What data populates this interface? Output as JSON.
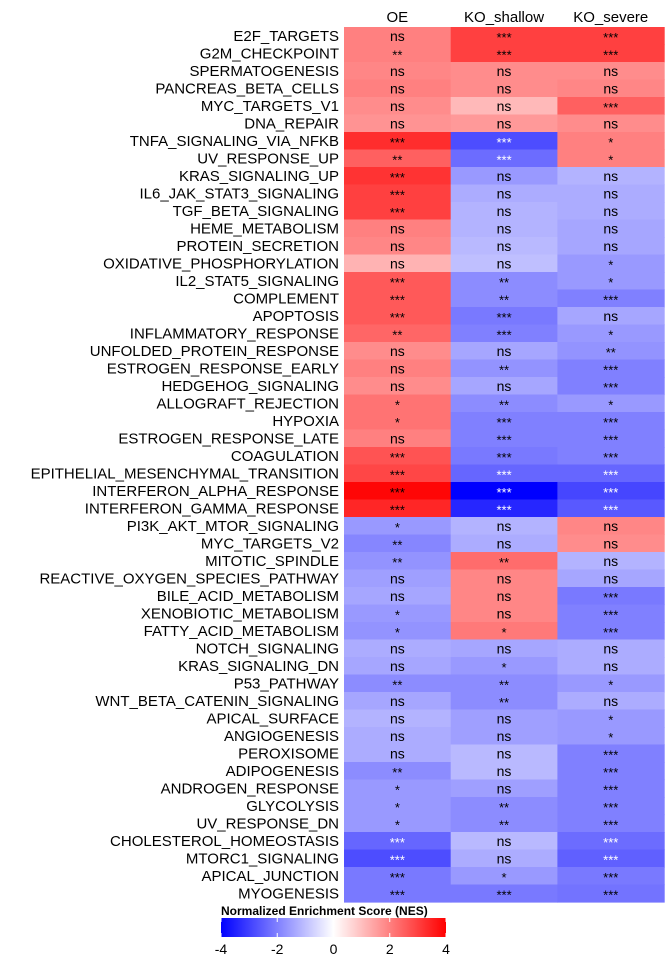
{
  "chart_data": {
    "type": "heatmap",
    "columns": [
      "OE",
      "KO_shallow",
      "KO_severe"
    ],
    "rows": [
      {
        "label": "E2F_TARGETS",
        "nes": [
          2.0,
          3.0,
          3.0
        ],
        "sig": [
          "ns",
          "***",
          "***"
        ]
      },
      {
        "label": "G2M_CHECKPOINT",
        "nes": [
          2.0,
          3.0,
          3.0
        ],
        "sig": [
          "**",
          "***",
          "***"
        ]
      },
      {
        "label": "SPERMATOGENESIS",
        "nes": [
          1.9,
          1.8,
          1.8
        ],
        "sig": [
          "ns",
          "ns",
          "ns"
        ]
      },
      {
        "label": "PANCREAS_BETA_CELLS",
        "nes": [
          2.0,
          1.8,
          1.9
        ],
        "sig": [
          "ns",
          "ns",
          "ns"
        ]
      },
      {
        "label": "MYC_TARGETS_V1",
        "nes": [
          1.8,
          1.1,
          2.5
        ],
        "sig": [
          "ns",
          "ns",
          "***"
        ]
      },
      {
        "label": "DNA_REPAIR",
        "nes": [
          1.7,
          1.6,
          1.8
        ],
        "sig": [
          "ns",
          "ns",
          "ns"
        ]
      },
      {
        "label": "TNFA_SIGNALING_VIA_NFKB",
        "nes": [
          3.3,
          -2.8,
          2.0
        ],
        "sig": [
          "***",
          "***",
          "*"
        ]
      },
      {
        "label": "UV_RESPONSE_UP",
        "nes": [
          2.5,
          -2.3,
          2.0
        ],
        "sig": [
          "**",
          "***",
          "*"
        ]
      },
      {
        "label": "KRAS_SIGNALING_UP",
        "nes": [
          3.2,
          -1.6,
          -1.2
        ],
        "sig": [
          "***",
          "ns",
          "ns"
        ]
      },
      {
        "label": "IL6_JAK_STAT3_SIGNALING",
        "nes": [
          3.0,
          -1.3,
          -1.3
        ],
        "sig": [
          "***",
          "ns",
          "ns"
        ]
      },
      {
        "label": "TGF_BETA_SIGNALING",
        "nes": [
          3.0,
          -1.2,
          -1.3
        ],
        "sig": [
          "***",
          "ns",
          "ns"
        ]
      },
      {
        "label": "HEME_METABOLISM",
        "nes": [
          2.0,
          -1.2,
          -1.4
        ],
        "sig": [
          "ns",
          "ns",
          "ns"
        ]
      },
      {
        "label": "PROTEIN_SECRETION",
        "nes": [
          1.9,
          -1.1,
          -1.4
        ],
        "sig": [
          "ns",
          "ns",
          "ns"
        ]
      },
      {
        "label": "OXIDATIVE_PHOSPHORYLATION",
        "nes": [
          1.2,
          -1.0,
          -1.6
        ],
        "sig": [
          "ns",
          "ns",
          "*"
        ]
      },
      {
        "label": "IL2_STAT5_SIGNALING",
        "nes": [
          2.6,
          -1.8,
          -1.6
        ],
        "sig": [
          "***",
          "**",
          "*"
        ]
      },
      {
        "label": "COMPLEMENT",
        "nes": [
          2.6,
          -1.8,
          -2.0
        ],
        "sig": [
          "***",
          "**",
          "***"
        ]
      },
      {
        "label": "APOPTOSIS",
        "nes": [
          2.6,
          -2.1,
          -1.4
        ],
        "sig": [
          "***",
          "***",
          "ns"
        ]
      },
      {
        "label": "INFLAMMATORY_RESPONSE",
        "nes": [
          2.4,
          -2.0,
          -1.6
        ],
        "sig": [
          "**",
          "***",
          "*"
        ]
      },
      {
        "label": "UNFOLDED_PROTEIN_RESPONSE",
        "nes": [
          1.8,
          -1.4,
          -1.7
        ],
        "sig": [
          "ns",
          "ns",
          "**"
        ]
      },
      {
        "label": "ESTROGEN_RESPONSE_EARLY",
        "nes": [
          2.0,
          -1.7,
          -2.0
        ],
        "sig": [
          "ns",
          "**",
          "***"
        ]
      },
      {
        "label": "HEDGEHOG_SIGNALING",
        "nes": [
          1.8,
          -1.4,
          -2.0
        ],
        "sig": [
          "ns",
          "ns",
          "***"
        ]
      },
      {
        "label": "ALLOGRAFT_REJECTION",
        "nes": [
          2.2,
          -1.8,
          -1.6
        ],
        "sig": [
          "*",
          "**",
          "*"
        ]
      },
      {
        "label": "HYPOXIA",
        "nes": [
          2.2,
          -2.0,
          -2.0
        ],
        "sig": [
          "*",
          "***",
          "***"
        ]
      },
      {
        "label": "ESTROGEN_RESPONSE_LATE",
        "nes": [
          2.0,
          -2.0,
          -2.0
        ],
        "sig": [
          "ns",
          "***",
          "***"
        ]
      },
      {
        "label": "COAGULATION",
        "nes": [
          2.7,
          -2.1,
          -2.0
        ],
        "sig": [
          "***",
          "***",
          "***"
        ]
      },
      {
        "label": "EPITHELIAL_MESENCHYMAL_TRANSITION",
        "nes": [
          2.9,
          -2.4,
          -2.4
        ],
        "sig": [
          "***",
          "***",
          "***"
        ]
      },
      {
        "label": "INTERFERON_ALPHA_RESPONSE",
        "nes": [
          3.9,
          -4.0,
          -2.9
        ],
        "sig": [
          "***",
          "***",
          "***"
        ]
      },
      {
        "label": "INTERFERON_GAMMA_RESPONSE",
        "nes": [
          3.4,
          -3.4,
          -2.6
        ],
        "sig": [
          "***",
          "***",
          "***"
        ]
      },
      {
        "label": "PI3K_AKT_MTOR_SIGNALING",
        "nes": [
          -1.6,
          -1.2,
          1.9
        ],
        "sig": [
          "*",
          "ns",
          "ns"
        ]
      },
      {
        "label": "MYC_TARGETS_V2",
        "nes": [
          -1.9,
          -1.3,
          1.8
        ],
        "sig": [
          "**",
          "ns",
          "ns"
        ]
      },
      {
        "label": "MITOTIC_SPINDLE",
        "nes": [
          -1.7,
          2.3,
          -1.2
        ],
        "sig": [
          "**",
          "**",
          "ns"
        ]
      },
      {
        "label": "REACTIVE_OXYGEN_SPECIES_PATHWAY",
        "nes": [
          -1.5,
          1.9,
          -1.4
        ],
        "sig": [
          "ns",
          "ns",
          "ns"
        ]
      },
      {
        "label": "BILE_ACID_METABOLISM",
        "nes": [
          -1.4,
          1.9,
          -2.1
        ],
        "sig": [
          "ns",
          "ns",
          "***"
        ]
      },
      {
        "label": "XENOBIOTIC_METABOLISM",
        "nes": [
          -1.6,
          1.9,
          -2.0
        ],
        "sig": [
          "*",
          "ns",
          "***"
        ]
      },
      {
        "label": "FATTY_ACID_METABOLISM",
        "nes": [
          -1.7,
          2.1,
          -2.0
        ],
        "sig": [
          "*",
          "*",
          "***"
        ]
      },
      {
        "label": "NOTCH_SIGNALING",
        "nes": [
          -1.3,
          -1.4,
          -1.3
        ],
        "sig": [
          "ns",
          "ns",
          "ns"
        ]
      },
      {
        "label": "KRAS_SIGNALING_DN",
        "nes": [
          -1.4,
          -1.6,
          -1.3
        ],
        "sig": [
          "ns",
          "*",
          "ns"
        ]
      },
      {
        "label": "P53_PATHWAY",
        "nes": [
          -1.8,
          -1.8,
          -1.6
        ],
        "sig": [
          "**",
          "**",
          "*"
        ]
      },
      {
        "label": "WNT_BETA_CATENIN_SIGNALING",
        "nes": [
          -1.4,
          -1.8,
          -1.3
        ],
        "sig": [
          "ns",
          "**",
          "ns"
        ]
      },
      {
        "label": "APICAL_SURFACE",
        "nes": [
          -1.2,
          -1.5,
          -1.6
        ],
        "sig": [
          "ns",
          "ns",
          "*"
        ]
      },
      {
        "label": "ANGIOGENESIS",
        "nes": [
          -1.3,
          -1.5,
          -1.6
        ],
        "sig": [
          "ns",
          "ns",
          "*"
        ]
      },
      {
        "label": "PEROXISOME",
        "nes": [
          -1.3,
          -1.1,
          -2.0
        ],
        "sig": [
          "ns",
          "ns",
          "***"
        ]
      },
      {
        "label": "ADIPOGENESIS",
        "nes": [
          -1.8,
          -1.1,
          -2.0
        ],
        "sig": [
          "**",
          "ns",
          "***"
        ]
      },
      {
        "label": "ANDROGEN_RESPONSE",
        "nes": [
          -1.6,
          -1.5,
          -2.0
        ],
        "sig": [
          "*",
          "ns",
          "***"
        ]
      },
      {
        "label": "GLYCOLYSIS",
        "nes": [
          -1.6,
          -1.8,
          -2.0
        ],
        "sig": [
          "*",
          "**",
          "***"
        ]
      },
      {
        "label": "UV_RESPONSE_DN",
        "nes": [
          -1.6,
          -1.8,
          -2.0
        ],
        "sig": [
          "*",
          "**",
          "***"
        ]
      },
      {
        "label": "CHOLESTEROL_HOMEOSTASIS",
        "nes": [
          -2.4,
          -1.1,
          -2.3
        ],
        "sig": [
          "***",
          "ns",
          "***"
        ]
      },
      {
        "label": "MTORC1_SIGNALING",
        "nes": [
          -2.8,
          -1.3,
          -2.5
        ],
        "sig": [
          "***",
          "ns",
          "***"
        ]
      },
      {
        "label": "APICAL_JUNCTION",
        "nes": [
          -2.1,
          -1.6,
          -2.1
        ],
        "sig": [
          "***",
          "*",
          "***"
        ]
      },
      {
        "label": "MYOGENESIS",
        "nes": [
          -2.1,
          -2.1,
          -2.2
        ],
        "sig": [
          "***",
          "***",
          "***"
        ]
      }
    ],
    "colorbar": {
      "title": "Normalized Enrichment Score (NES)",
      "ticks": [
        -4,
        -2,
        0,
        2,
        4
      ],
      "range": [
        -4,
        4
      ]
    },
    "colors": {
      "low": "#0000ff",
      "mid": "#ffffff",
      "high": "#ff0000"
    }
  }
}
